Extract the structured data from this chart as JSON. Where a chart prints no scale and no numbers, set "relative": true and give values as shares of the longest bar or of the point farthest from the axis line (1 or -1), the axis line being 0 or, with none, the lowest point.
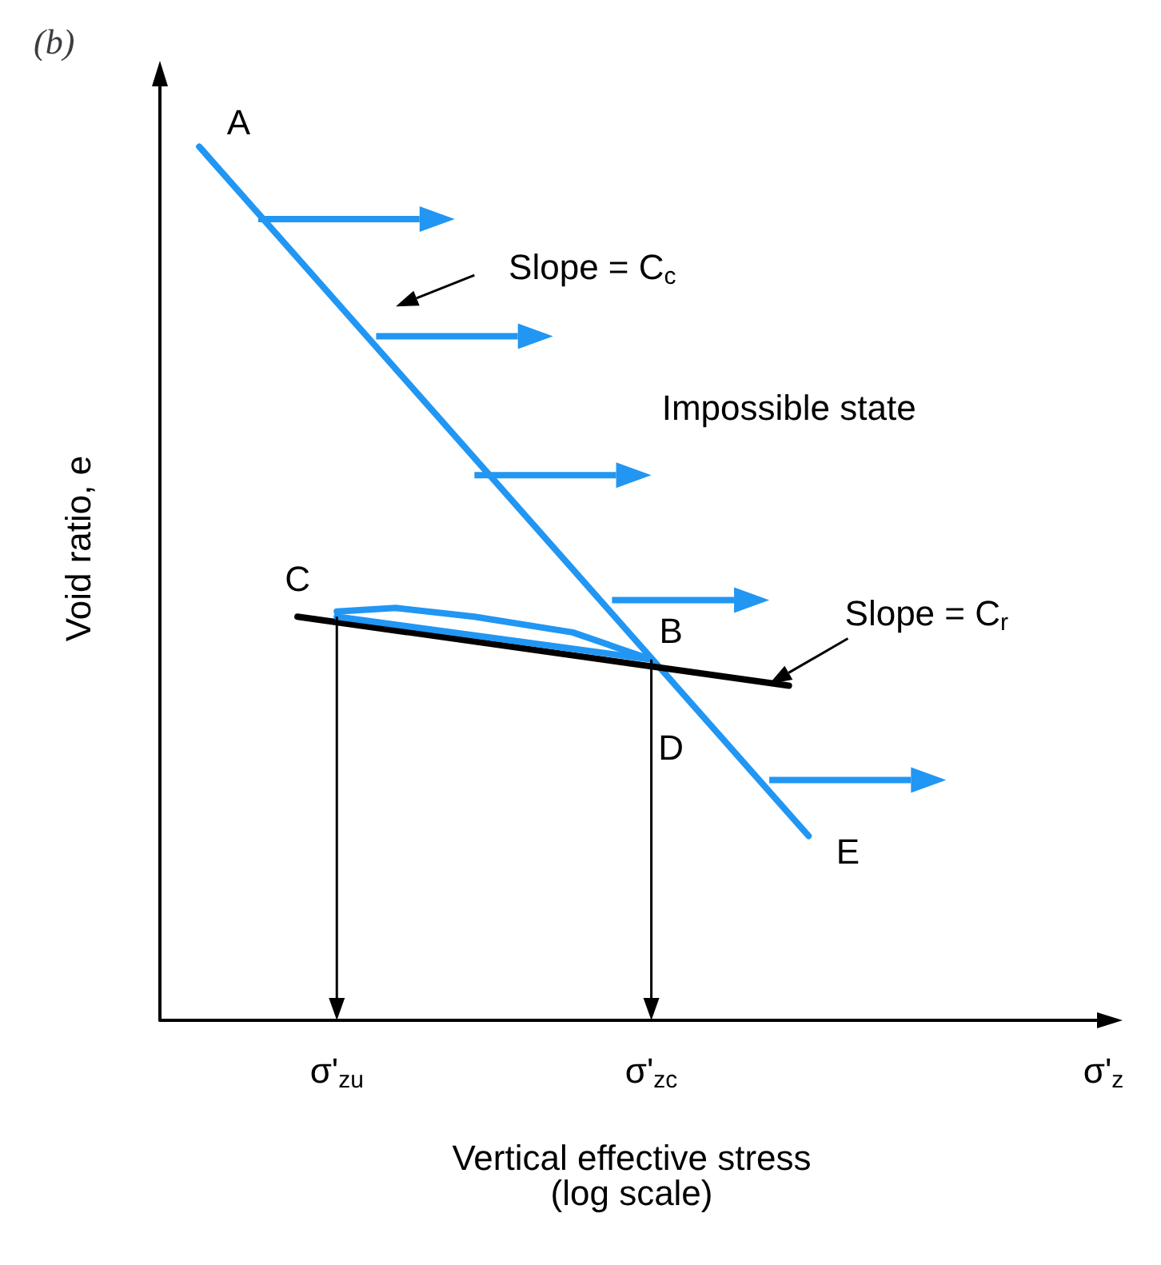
{
  "chart_data": {
    "type": "line",
    "title": "(b)",
    "xlabel": "Vertical effective stress\n(log scale)",
    "ylabel": "Void ratio, e",
    "relative": true,
    "grid": false,
    "marker": "none",
    "line_style": "solid",
    "categories": [
      null,
      null,
      null,
      null,
      null,
      null,
      null,
      null,
      null,
      "σ'$_{zu}$",
      null,
      null,
      null,
      null,
      null,
      null,
      null,
      null,
      null,
      null,
      null,
      null,
      null,
      null,
      null,
      "σ'$_{zc}$",
      null,
      null,
      null,
      null,
      null,
      null,
      null,
      null,
      null,
      null,
      null,
      null,
      null,
      null,
      null,
      null,
      null,
      null,
      null,
      null,
      null,
      null,
      "σ'$_{z}$"
    ],
    "series": [
      {
        "color": "#2196f3",
        "values": [
          null,
          null,
          1,
          null,
          null,
          null,
          null,
          null,
          null,
          null,
          null,
          null,
          null,
          null,
          null,
          null,
          null,
          null,
          null,
          null,
          null,
          null,
          null,
          null,
          null,
          null,
          null,
          null,
          null,
          null,
          null,
          null,
          null,
          0.211,
          null,
          null,
          null,
          null,
          null,
          null,
          null,
          null,
          null,
          null,
          null,
          null,
          null,
          null,
          null
        ]
      },
      {
        "color": "#000000",
        "values": [
          null,
          null,
          null,
          null,
          null,
          null,
          null,
          0.462,
          null,
          null,
          null,
          null,
          null,
          null,
          null,
          null,
          null,
          null,
          null,
          null,
          null,
          null,
          null,
          null,
          null,
          null,
          null,
          null,
          null,
          null,
          null,
          null,
          0.383,
          null,
          null,
          null,
          null,
          null,
          null,
          null,
          null,
          null,
          null,
          null,
          null,
          null,
          null,
          null,
          null
        ]
      },
      {
        "color": "#2196f3",
        "values": [
          null,
          null,
          null,
          null,
          null,
          null,
          null,
          null,
          null,
          0.468,
          null,
          null,
          0.472,
          null,
          null,
          null,
          0.462,
          null,
          null,
          null,
          null,
          0.444,
          null,
          null,
          null,
          0.413,
          null,
          null,
          null,
          null,
          null,
          null,
          null,
          null,
          null,
          null,
          null,
          null,
          null,
          null,
          null,
          null,
          null,
          null,
          null,
          null,
          null,
          null,
          null
        ]
      },
      {
        "color": "#2196f3",
        "values": [
          null,
          null,
          null,
          null,
          null,
          null,
          null,
          null,
          null,
          0.462,
          null,
          null,
          null,
          null,
          null,
          null,
          null,
          null,
          null,
          null,
          null,
          null,
          null,
          null,
          null,
          0.413,
          null,
          null,
          null,
          null,
          null,
          null,
          null,
          null,
          null,
          null,
          null,
          null,
          null,
          null,
          null,
          null,
          null,
          null,
          null,
          null,
          null,
          null,
          null
        ]
      }
    ],
    "annotations": [
      "A",
      "Slope = C$_{c}$",
      "Impossible state",
      "C",
      "B",
      "Slope = C$_{r}$",
      "D",
      "E"
    ]
  }
}
